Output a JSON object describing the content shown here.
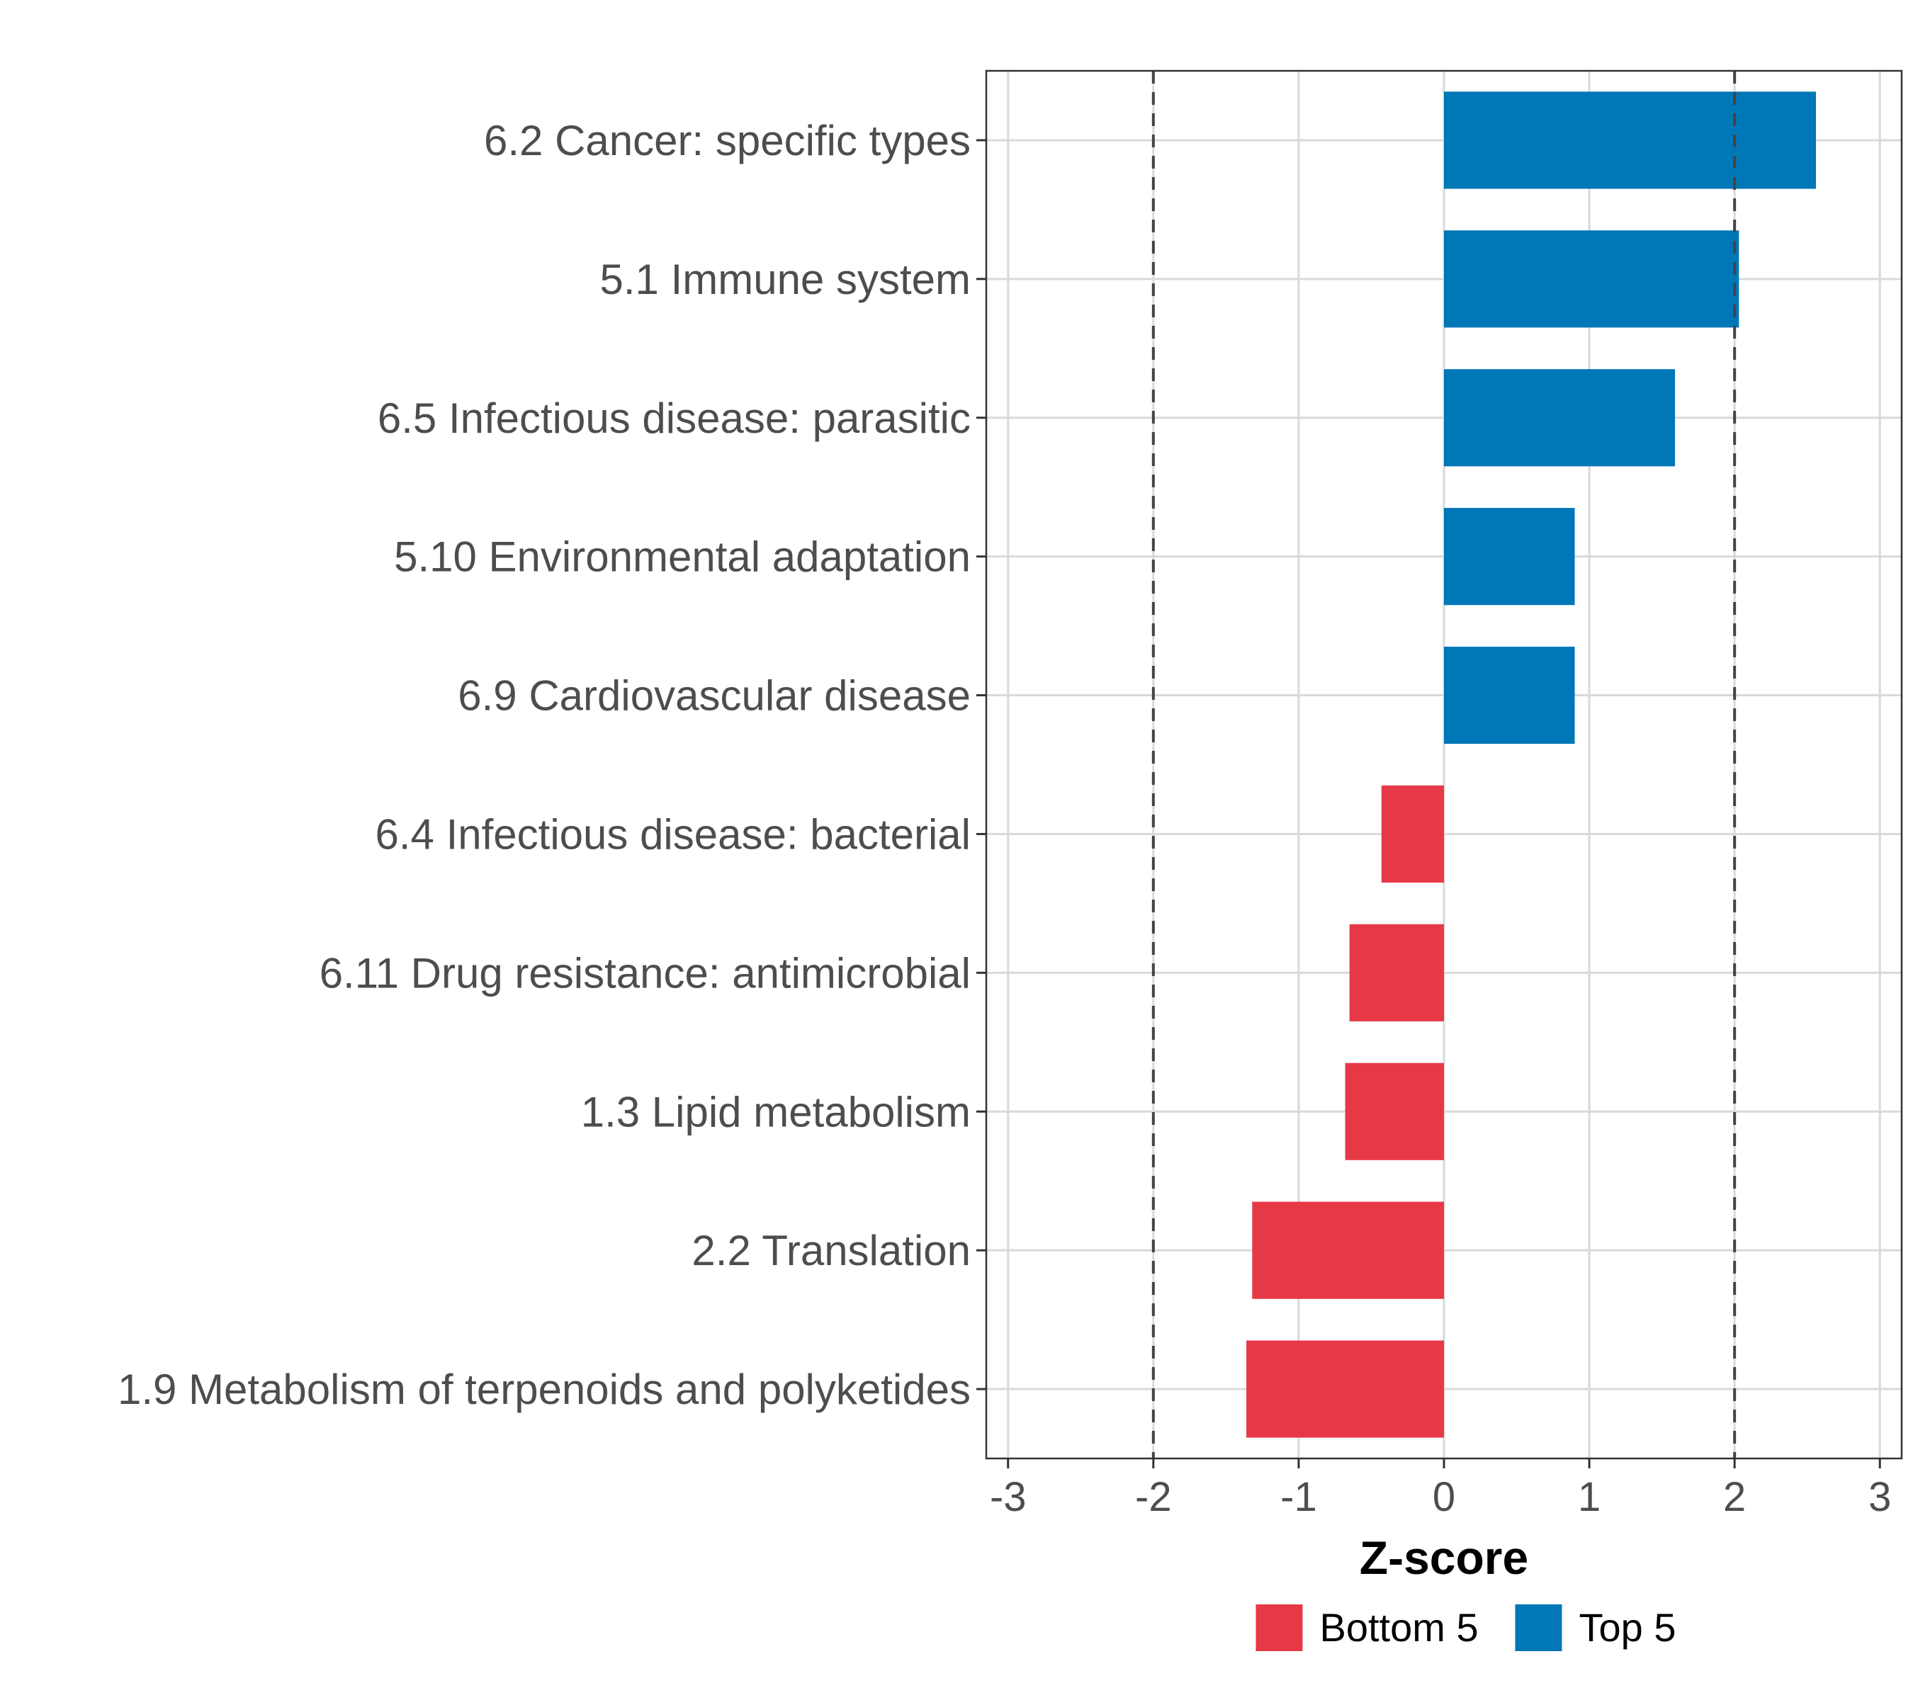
{
  "chart_data": {
    "type": "bar",
    "orientation": "horizontal",
    "title": "",
    "xlabel": "Z-score",
    "ylabel": "",
    "xlim": [
      -3.15,
      3.15
    ],
    "x_ticks": [
      -3,
      -2,
      -1,
      0,
      1,
      2,
      3
    ],
    "x_tick_labels": [
      "-3",
      "-2",
      "-1",
      "0",
      "1",
      "2",
      "3"
    ],
    "reference_lines": [
      -2,
      2
    ],
    "grid": true,
    "categories": [
      "6.2 Cancer: specific types",
      "5.1 Immune system",
      "6.5 Infectious disease: parasitic",
      "5.10 Environmental adaptation",
      "6.9 Cardiovascular disease",
      "6.4 Infectious disease: bacterial",
      "6.11 Drug resistance: antimicrobial",
      "1.3 Lipid metabolism",
      "2.2 Translation",
      "1.9 Metabolism of terpenoids and polyketides"
    ],
    "values": [
      2.56,
      2.03,
      1.59,
      0.9,
      0.9,
      -0.43,
      -0.65,
      -0.68,
      -1.32,
      -1.36
    ],
    "groups": [
      "Top 5",
      "Top 5",
      "Top 5",
      "Top 5",
      "Top 5",
      "Bottom 5",
      "Bottom 5",
      "Bottom 5",
      "Bottom 5",
      "Bottom 5"
    ],
    "legend": [
      {
        "label": "Bottom 5",
        "color": "#E63946"
      },
      {
        "label": "Top 5",
        "color": "#0077B6"
      }
    ],
    "legend_position": "bottom"
  }
}
